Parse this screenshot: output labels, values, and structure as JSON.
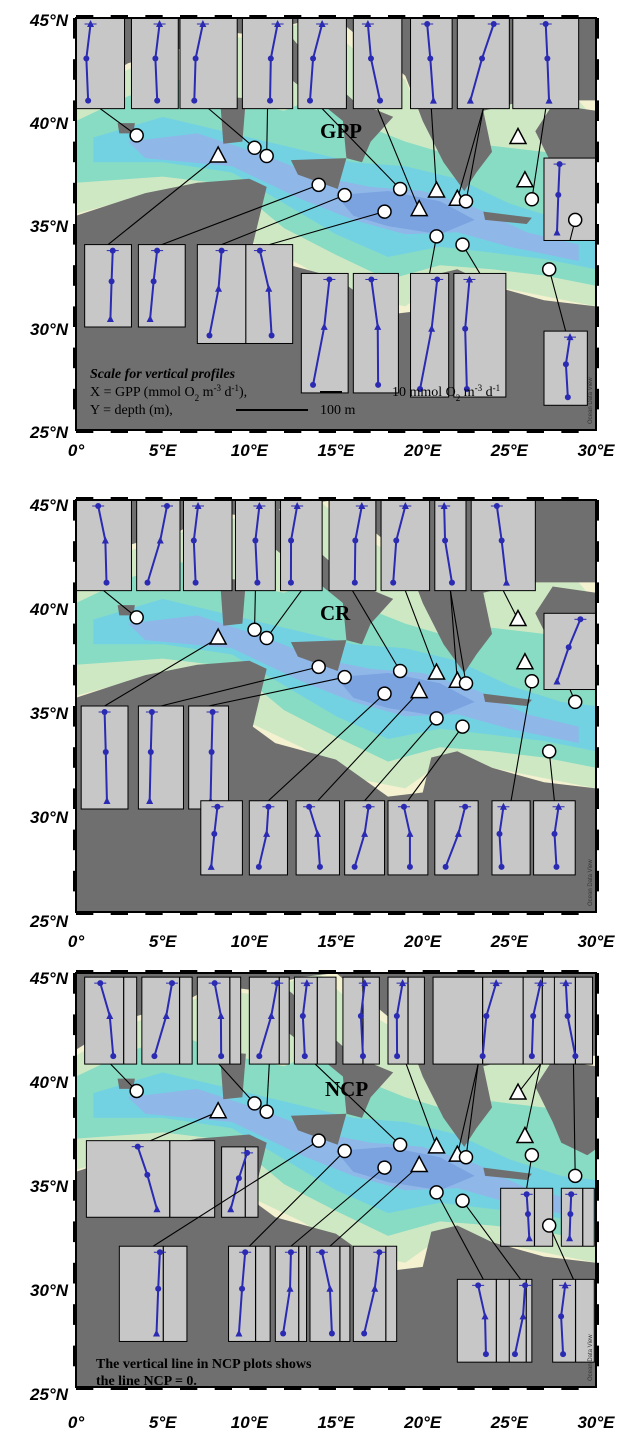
{
  "colors": {
    "land": "#6f6f6f",
    "shelf": "#f3f1cf",
    "shallow": "#cfe8c4",
    "mid": "#88dcc3",
    "deep": "#73d2e2",
    "abyss": "#8fb7e8",
    "inset": "#c7c7c7",
    "profile": "#2a2ab3"
  },
  "axes": {
    "lat_ticks": [
      "45°N",
      "40°N",
      "35°N",
      "30°N",
      "25°N"
    ],
    "lon_ticks": [
      "0°",
      "5°E",
      "10°E",
      "15°E",
      "20°E",
      "25°E",
      "30°E"
    ]
  },
  "watermark": "Ocean Data View",
  "panels": [
    {
      "label": "GPP",
      "scale_title": "Scale for vertical profiles",
      "scale_x_text": "X = GPP (mmol O",
      "scale_x_units": "10 mmol O",
      "scale_y_text": "Y = depth (m),",
      "scale_y_units": "100 m",
      "footnote_1": "",
      "footnote_2": ""
    },
    {
      "label": "CR",
      "scale_title": "",
      "scale_x_text": "",
      "scale_x_units": "",
      "scale_y_text": "",
      "scale_y_units": "",
      "footnote_1": "",
      "footnote_2": ""
    },
    {
      "label": "NCP",
      "scale_title": "",
      "scale_x_text": "",
      "scale_x_units": "",
      "scale_y_text": "",
      "scale_y_units": "",
      "footnote_1": "The vertical line in NCP plots shows",
      "footnote_2": "the line NCP = 0."
    }
  ],
  "stations": [
    {
      "lon": 3.5,
      "lat": 39.3,
      "shape": "circle"
    },
    {
      "lon": 8.2,
      "lat": 38.3,
      "shape": "triangle"
    },
    {
      "lon": 10.3,
      "lat": 38.7,
      "shape": "circle"
    },
    {
      "lon": 11.0,
      "lat": 38.3,
      "shape": "circle"
    },
    {
      "lon": 14.0,
      "lat": 36.9,
      "shape": "circle"
    },
    {
      "lon": 15.5,
      "lat": 36.4,
      "shape": "circle"
    },
    {
      "lon": 17.8,
      "lat": 35.6,
      "shape": "circle"
    },
    {
      "lon": 18.7,
      "lat": 36.7,
      "shape": "circle"
    },
    {
      "lon": 19.8,
      "lat": 35.7,
      "shape": "triangle"
    },
    {
      "lon": 20.8,
      "lat": 36.6,
      "shape": "triangle"
    },
    {
      "lon": 20.8,
      "lat": 34.4,
      "shape": "circle"
    },
    {
      "lon": 22.0,
      "lat": 36.2,
      "shape": "triangle"
    },
    {
      "lon": 22.5,
      "lat": 36.1,
      "shape": "circle"
    },
    {
      "lon": 22.3,
      "lat": 34.0,
      "shape": "circle"
    },
    {
      "lon": 25.5,
      "lat": 39.2,
      "shape": "triangle"
    },
    {
      "lon": 25.9,
      "lat": 37.1,
      "shape": "triangle"
    },
    {
      "lon": 26.3,
      "lat": 36.2,
      "shape": "circle"
    },
    {
      "lon": 27.3,
      "lat": 32.8,
      "shape": "circle"
    },
    {
      "lon": 28.8,
      "lat": 35.2,
      "shape": "circle"
    }
  ]
}
